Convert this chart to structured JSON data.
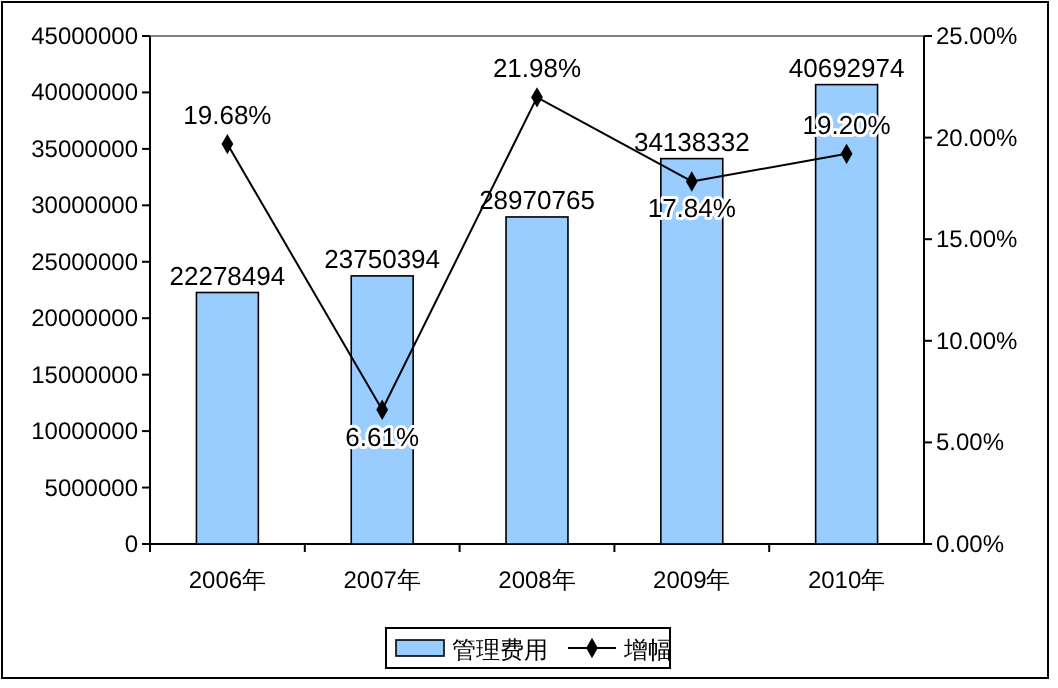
{
  "chart_data": {
    "type": "bar",
    "categories": [
      "2006年",
      "2007年",
      "2008年",
      "2009年",
      "2010年"
    ],
    "series": [
      {
        "name": "管理费用",
        "color": "#99ccff",
        "values": [
          22278494,
          23750394,
          28970765,
          34138332,
          40692974
        ],
        "value_labels": [
          "22278494",
          "23750394",
          "28970765",
          "34138332",
          "40692974"
        ]
      },
      {
        "name": "增幅",
        "type": "line",
        "axis": "y2",
        "color": "#000000",
        "values": [
          19.68,
          6.61,
          21.98,
          17.84,
          19.2
        ],
        "value_labels": [
          "19.68%",
          "6.61%",
          "21.98%",
          "17.84%",
          "19.20%"
        ]
      }
    ],
    "ylim": [
      0,
      45000000
    ],
    "yticks": [
      0,
      5000000,
      10000000,
      15000000,
      20000000,
      25000000,
      30000000,
      35000000,
      40000000,
      45000000
    ],
    "y2lim": [
      0,
      25
    ],
    "y2ticks": [
      {
        "value": 0,
        "label": "0.00%"
      },
      {
        "value": 5,
        "label": "5.00%"
      },
      {
        "value": 10,
        "label": "10.00%"
      },
      {
        "value": 15,
        "label": "15.00%"
      },
      {
        "value": 20,
        "label": "20.00%"
      },
      {
        "value": 25,
        "label": "25.00%"
      }
    ],
    "marker": "diamond",
    "legend": "bottom",
    "grid": false
  }
}
